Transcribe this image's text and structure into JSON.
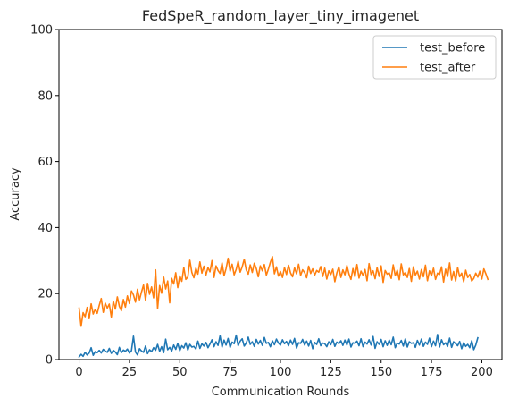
{
  "chart_data": {
    "type": "line",
    "title": "FedSpeR_random_layer_tiny_imagenet",
    "xlabel": "Communication Rounds",
    "ylabel": "Accuracy",
    "xlim": [
      -10,
      210
    ],
    "ylim": [
      0,
      100
    ],
    "xticks": [
      0,
      25,
      50,
      75,
      100,
      125,
      150,
      175,
      200
    ],
    "yticks": [
      0,
      20,
      40,
      60,
      80,
      100
    ],
    "legend_position": "upper right",
    "grid": false,
    "series": [
      {
        "name": "test_before",
        "color": "#1f77b4",
        "values": [
          0.8,
          1.6,
          1.0,
          2.2,
          1.4,
          2.0,
          3.6,
          1.3,
          2.4,
          2.1,
          2.8,
          2.0,
          3.1,
          2.6,
          2.2,
          3.4,
          1.9,
          2.8,
          2.3,
          1.5,
          3.7,
          2.1,
          2.9,
          2.5,
          3.2,
          2.0,
          2.7,
          7.1,
          2.3,
          1.4,
          3.3,
          2.6,
          2.2,
          4.1,
          1.8,
          3.0,
          2.4,
          3.6,
          2.8,
          4.6,
          2.5,
          3.9,
          2.1,
          6.2,
          3.0,
          3.7,
          2.6,
          4.4,
          3.1,
          4.9,
          2.7,
          4.2,
          3.5,
          5.1,
          2.9,
          4.6,
          3.8,
          4.0,
          3.2,
          5.6,
          3.4,
          4.8,
          4.1,
          5.2,
          3.6,
          4.7,
          6.0,
          3.9,
          5.4,
          4.3,
          7.2,
          3.8,
          5.9,
          4.4,
          6.4,
          3.7,
          5.3,
          4.8,
          7.4,
          4.2,
          5.6,
          6.3,
          4.1,
          5.0,
          6.8,
          4.6,
          5.4,
          4.0,
          6.1,
          4.7,
          5.8,
          4.3,
          6.7,
          4.9,
          5.2,
          3.9,
          5.7,
          4.5,
          6.2,
          5.0,
          4.4,
          6.0,
          4.8,
          5.5,
          4.2,
          5.9,
          4.6,
          6.4,
          3.5,
          5.1,
          4.9,
          6.1,
          4.4,
          5.6,
          4.1,
          5.8,
          3.3,
          5.2,
          4.6,
          6.3,
          4.2,
          5.0,
          4.8,
          3.9,
          5.4,
          4.5,
          6.1,
          4.0,
          5.3,
          4.8,
          5.7,
          4.3,
          5.9,
          4.4,
          6.2,
          3.8,
          5.1,
          4.9,
          5.6,
          4.2,
          6.3,
          3.9,
          5.3,
          4.7,
          6.0,
          4.4,
          7.0,
          3.4,
          5.4,
          4.6,
          6.1,
          3.9,
          5.7,
          4.3,
          5.9,
          4.5,
          6.8,
          3.6,
          5.0,
          4.7,
          5.8,
          4.1,
          6.3,
          3.8,
          5.4,
          4.9,
          5.1,
          3.7,
          5.8,
          4.4,
          6.2,
          4.0,
          5.3,
          4.6,
          6.5,
          3.9,
          5.6,
          4.2,
          7.6,
          3.8,
          6.0,
          4.5,
          5.1,
          4.0,
          6.5,
          3.7,
          5.4,
          4.8,
          4.2,
          5.5,
          3.3,
          5.1,
          4.0,
          4.6,
          3.6,
          5.7,
          3.0,
          4.4,
          6.6
        ],
        "draw_values": [
          0.8,
          1.6,
          1.0,
          2.2,
          1.4,
          2.0,
          3.6,
          1.3,
          2.4,
          2.1,
          2.8,
          2.0,
          3.1,
          2.6,
          2.2,
          3.4,
          1.9,
          2.8,
          2.3,
          1.5,
          3.7,
          2.1,
          2.9,
          2.5,
          3.2,
          2.0,
          2.7,
          7.1,
          2.3,
          1.4,
          3.3,
          2.6,
          2.2,
          4.1,
          1.8,
          3.0,
          2.4,
          3.6,
          2.8,
          4.6,
          2.5,
          3.9,
          2.1,
          6.2,
          3.0,
          3.7,
          2.6,
          4.4,
          3.1,
          4.9,
          2.7,
          4.2,
          3.5,
          5.1,
          2.9,
          4.6,
          3.8,
          4.0,
          3.2,
          5.6,
          3.4,
          4.8,
          4.1,
          5.2,
          3.6,
          4.7,
          6.0,
          3.9,
          5.4,
          4.3,
          7.2,
          3.8,
          5.9,
          4.4,
          6.4,
          3.7,
          5.3,
          4.8,
          7.4,
          4.2,
          5.6,
          6.3,
          4.1,
          5.0,
          6.8,
          4.6,
          5.4,
          4.0,
          6.1,
          4.7,
          5.8,
          4.3,
          6.7,
          4.9,
          5.2,
          3.9,
          5.7,
          4.5,
          6.2,
          5.0,
          4.4,
          6.0,
          4.8,
          5.5,
          4.2,
          5.9,
          4.6,
          6.4,
          3.5,
          5.1,
          4.9,
          6.1,
          4.4,
          5.6,
          4.1,
          5.8,
          3.3,
          5.2,
          4.6,
          6.3,
          4.2,
          5.0,
          4.8,
          3.9,
          5.4,
          4.5,
          6.1,
          4.0,
          5.3,
          4.8,
          5.7,
          4.3,
          5.9,
          4.4,
          6.2,
          3.8,
          5.1,
          4.9,
          5.6,
          4.2,
          6.3,
          3.9,
          5.3,
          4.7,
          6.0,
          4.4,
          7.0,
          3.4,
          5.4,
          4.6,
          6.1,
          3.9,
          5.7,
          4.3,
          5.9,
          4.5,
          6.8,
          3.6,
          5.0,
          4.7,
          5.8,
          4.1,
          6.3,
          3.8,
          5.4,
          4.9,
          5.1,
          3.7,
          5.8,
          4.4,
          6.2,
          4.0,
          5.3,
          4.6,
          6.5,
          3.9,
          5.6,
          4.2,
          7.6,
          3.8,
          6.0,
          4.5,
          5.1,
          4.0,
          6.5,
          3.7,
          5.4,
          4.8,
          4.2,
          5.5,
          3.3,
          5.1,
          4.0,
          4.6,
          3.6,
          5.7,
          3.0,
          4.4,
          6.6
        ]
      },
      {
        "name": "test_after",
        "color": "#ff7f0e",
        "values": [
          15.6,
          10.1,
          14.2,
          13.0,
          15.8,
          12.4,
          16.9,
          13.8,
          15.2,
          14.0,
          16.4,
          18.5,
          14.3,
          17.1,
          15.6,
          16.8,
          12.9,
          17.7,
          15.3,
          19.0,
          16.1,
          14.8,
          18.2,
          15.9,
          19.3,
          17.0,
          20.8,
          19.6,
          17.4,
          21.3,
          18.1,
          20.5,
          22.6,
          17.9,
          23.1,
          19.8,
          22.0,
          18.7,
          27.2,
          15.4,
          22.4,
          20.1,
          25.0,
          21.4,
          23.8,
          17.2,
          24.6,
          22.9,
          26.3,
          21.8,
          25.4,
          23.7,
          27.9,
          24.3,
          25.0,
          30.1,
          26.4,
          24.8,
          27.7,
          25.9,
          29.6,
          26.2,
          28.3,
          25.6,
          27.9,
          26.6,
          30.0,
          24.9,
          28.4,
          27.0,
          26.1,
          29.3,
          25.4,
          27.6,
          30.7,
          26.8,
          28.9,
          25.7,
          27.3,
          29.8,
          26.5,
          28.1,
          30.4,
          27.2,
          25.9,
          28.7,
          26.4,
          29.2,
          27.6,
          25.1,
          28.4,
          26.9,
          28.8,
          25.6,
          27.4,
          29.5,
          31.2,
          26.0,
          28.1,
          25.3,
          26.7,
          24.9,
          27.9,
          25.8,
          28.6,
          26.3,
          25.1,
          27.8,
          26.0,
          28.9,
          25.5,
          27.2,
          26.4,
          24.8,
          28.3,
          26.1,
          27.5,
          25.6,
          27.0,
          26.5,
          28.2,
          25.2,
          27.7,
          24.4,
          26.9,
          25.8,
          27.4,
          23.6,
          26.3,
          28.1,
          24.9,
          27.2,
          25.7,
          28.5,
          26.0,
          24.3,
          27.6,
          25.1,
          28.8,
          24.7,
          26.8,
          25.5,
          27.3,
          23.9,
          29.1,
          25.8,
          26.9,
          24.5,
          27.9,
          25.2,
          28.4,
          23.4,
          27.0,
          25.9,
          26.3,
          24.6,
          28.7,
          25.4,
          27.1,
          24.2,
          29.0,
          25.7,
          26.4,
          24.9,
          27.6,
          23.7,
          28.1,
          25.6,
          26.8,
          24.4,
          27.3,
          25.1,
          28.6,
          23.9,
          26.9,
          25.4,
          27.7,
          24.3,
          26.2,
          25.8,
          28.1,
          23.5,
          27.4,
          25.2,
          29.3,
          24.1,
          26.7,
          23.8,
          27.9,
          25.1,
          26.2,
          23.6,
          27.1,
          24.9,
          25.8,
          23.8,
          24.6,
          26.2,
          25.0,
          26.8,
          24.4,
          27.5,
          26.0,
          24.3
        ]
      }
    ]
  }
}
